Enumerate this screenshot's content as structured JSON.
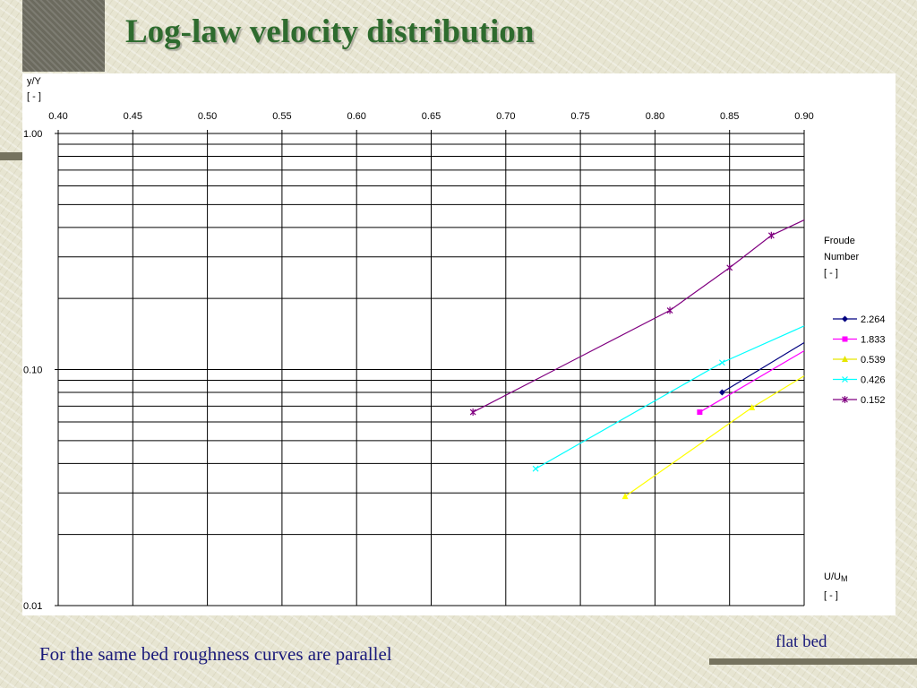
{
  "slide": {
    "title": "Log-law velocity distribution",
    "caption": "For the same bed roughness curves are parallel",
    "note": "flat bed"
  },
  "chart_data": {
    "type": "line",
    "title": "",
    "y_label_lines": [
      "y/Y",
      "[ - ]"
    ],
    "x_label_main": "U/U",
    "x_label_sub": "M",
    "x_label_unit": "[ - ]",
    "legend_title_lines": [
      "Froude",
      "Number",
      "[ - ]"
    ],
    "legend_position": "right",
    "x_axis_position": "top",
    "x_range": [
      0.4,
      0.9
    ],
    "x_ticks": [
      "0.40",
      "0.45",
      "0.50",
      "0.55",
      "0.60",
      "0.65",
      "0.70",
      "0.75",
      "0.80",
      "0.85",
      "0.90"
    ],
    "y_scale": "log",
    "y_range": [
      0.01,
      1.0
    ],
    "y_ticks": [
      {
        "value": 1.0,
        "label": "1.00"
      },
      {
        "value": 0.1,
        "label": "0.10"
      },
      {
        "value": 0.01,
        "label": "0.01"
      }
    ],
    "grid": true,
    "series": [
      {
        "name": "2.264",
        "color": "#000080",
        "marker": "diamond",
        "points": [
          [
            0.845,
            0.08
          ],
          [
            0.9,
            0.13
          ]
        ]
      },
      {
        "name": "1.833",
        "color": "#ff00ff",
        "marker": "square",
        "points": [
          [
            0.83,
            0.066
          ],
          [
            0.9,
            0.12
          ]
        ]
      },
      {
        "name": "0.539",
        "color": "#ffff00",
        "marker": "triangle",
        "points": [
          [
            0.78,
            0.029
          ],
          [
            0.865,
            0.069
          ],
          [
            0.9,
            0.094
          ]
        ]
      },
      {
        "name": "0.426",
        "color": "#00ffff",
        "marker": "x",
        "points": [
          [
            0.72,
            0.038
          ],
          [
            0.845,
            0.107
          ],
          [
            0.9,
            0.153
          ]
        ]
      },
      {
        "name": "0.152",
        "color": "#800080",
        "marker": "star",
        "points": [
          [
            0.678,
            0.066
          ],
          [
            0.81,
            0.178
          ],
          [
            0.85,
            0.27
          ],
          [
            0.878,
            0.37
          ],
          [
            0.9,
            0.43
          ]
        ]
      }
    ]
  }
}
